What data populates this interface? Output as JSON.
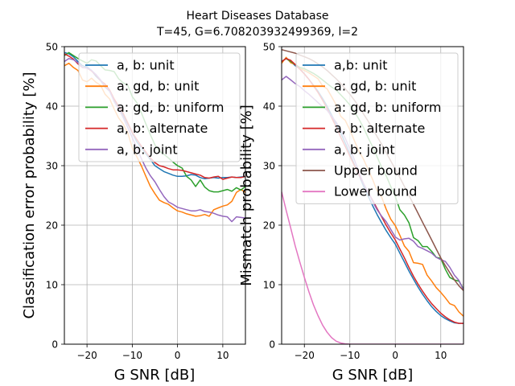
{
  "figure": {
    "title_line1": "Heart Diseases Database",
    "title_line2": "T=45, G=6.708203932499369, l=2"
  },
  "chart_data": [
    {
      "type": "line",
      "xlabel": "G SNR [dB]",
      "ylabel": "Classification error probability [%]",
      "xlim": [
        -25,
        15
      ],
      "ylim": [
        0,
        50
      ],
      "xticks": [
        -20,
        -10,
        0,
        10
      ],
      "yticks": [
        0,
        10,
        20,
        30,
        40,
        50
      ],
      "grid": true,
      "legend_position": "upper right",
      "x": [
        -25,
        -24,
        -23,
        -22,
        -21,
        -20,
        -19,
        -18,
        -17,
        -16,
        -15,
        -14,
        -13,
        -12,
        -11,
        -10,
        -9,
        -8,
        -7,
        -6,
        -5,
        -4,
        -3,
        -2,
        -1,
        0,
        1,
        2,
        3,
        4,
        5,
        6,
        7,
        8,
        9,
        10,
        11,
        12,
        13,
        14,
        15
      ],
      "series": [
        {
          "name": "a, b: unit",
          "color": "#1f77b4",
          "values": [
            49,
            48.8,
            48.3,
            47.5,
            46.8,
            46.6,
            46,
            45,
            44.3,
            43.2,
            42.5,
            41,
            40,
            38.5,
            37,
            35.5,
            34,
            33,
            32,
            31,
            30,
            29.5,
            29,
            28.7,
            28.4,
            28.2,
            28.2,
            28.3,
            28.5,
            28.4,
            28,
            27.8,
            27.9,
            28,
            27.9,
            28,
            28,
            28.1,
            28,
            28.1,
            28.2
          ]
        },
        {
          "name": "a: gd, b: unit",
          "color": "#ff7f0e",
          "values": [
            46.8,
            47.2,
            46.5,
            46,
            44.4,
            44.1,
            44.7,
            44,
            43.5,
            42,
            41.2,
            39.5,
            38,
            37,
            35.5,
            33,
            31.5,
            30,
            28.2,
            26.5,
            25.3,
            24.2,
            23.8,
            23.5,
            22.9,
            22.4,
            22.2,
            21.9,
            21.7,
            21.5,
            21.6,
            21.8,
            21.5,
            22.6,
            22.9,
            23.2,
            23.4,
            24,
            25.5,
            26,
            25.5
          ]
        },
        {
          "name": "a: gd, b: uniform",
          "color": "#2ca02c",
          "values": [
            48.5,
            49,
            48.5,
            48,
            47.6,
            47.2,
            47.8,
            47.6,
            46.8,
            46.1,
            46,
            45.8,
            44.6,
            43.9,
            43.5,
            41.6,
            40.6,
            38.9,
            37,
            35.2,
            33.5,
            32.4,
            31.9,
            31.3,
            30.6,
            30,
            29.6,
            28.2,
            27.6,
            26.5,
            27.6,
            26.4,
            25.8,
            25.6,
            25.6,
            25.8,
            26,
            25.7,
            26.3,
            25.9,
            26.5
          ]
        },
        {
          "name": "a, b: alternate",
          "color": "#d62728",
          "values": [
            48.8,
            48.4,
            47.9,
            47.1,
            46.5,
            46.4,
            45.9,
            45.2,
            44.3,
            43.7,
            42.7,
            41.2,
            40,
            38.8,
            37.2,
            35.6,
            34.4,
            33.3,
            32.3,
            31.3,
            30.5,
            30,
            29.8,
            29.5,
            29.3,
            29.3,
            29.2,
            29,
            28.8,
            28.6,
            28.4,
            28,
            27.9,
            28.1,
            28.2,
            27.7,
            27.9,
            28.1,
            28,
            28,
            28.2
          ]
        },
        {
          "name": "a, b: joint",
          "color": "#9467bd",
          "values": [
            47.5,
            48,
            47.8,
            47.3,
            46.5,
            46.4,
            46,
            45.3,
            44.4,
            43.3,
            42.5,
            40.8,
            39.5,
            38.1,
            36.4,
            34.7,
            33,
            31.2,
            29.6,
            28.3,
            27.3,
            26,
            24.8,
            23.9,
            23.5,
            23,
            22.8,
            22.6,
            22.4,
            22.4,
            22.6,
            22.3,
            22.2,
            22,
            21.7,
            21.5,
            21.4,
            20.6,
            21.4,
            21.3,
            21.2
          ]
        }
      ]
    },
    {
      "type": "line",
      "xlabel": "G SNR [dB]",
      "ylabel": "Mismatch probability [%]",
      "xlim": [
        -25,
        15
      ],
      "ylim": [
        0,
        50
      ],
      "xticks": [
        -20,
        -10,
        0,
        10
      ],
      "yticks": [
        0,
        10,
        20,
        30,
        40,
        50
      ],
      "grid": true,
      "legend_position": "upper right",
      "x": [
        -25,
        -24,
        -23,
        -22,
        -21,
        -20,
        -19,
        -18,
        -17,
        -16,
        -15,
        -14,
        -13,
        -12,
        -11,
        -10,
        -9,
        -8,
        -7,
        -6,
        -5,
        -4,
        -3,
        -2,
        -1,
        0,
        1,
        2,
        3,
        4,
        5,
        6,
        7,
        8,
        9,
        10,
        11,
        12,
        13,
        14,
        15
      ],
      "series": [
        {
          "name": "a,b: unit",
          "color": "#1f77b4",
          "values": [
            47.5,
            48,
            47.5,
            46.8,
            46.3,
            45.4,
            44.5,
            43.5,
            42.5,
            41.3,
            40,
            38.5,
            37,
            35.5,
            33.8,
            32,
            30.2,
            28.4,
            26.6,
            24.9,
            23.3,
            21.8,
            20.4,
            19.1,
            17.9,
            16.8,
            15.3,
            13.8,
            12.3,
            10.9,
            9.6,
            8.4,
            7.3,
            6.3,
            5.5,
            4.8,
            4.3,
            3.9,
            3.6,
            3.5,
            3.5
          ]
        },
        {
          "name": "a: gd, b: unit",
          "color": "#ff7f0e",
          "values": [
            47.2,
            48.2,
            47.3,
            47,
            46.3,
            46,
            45.6,
            45.1,
            44.6,
            43.4,
            42.9,
            41.6,
            40.2,
            38.3,
            37.6,
            36,
            34.2,
            32.4,
            31.1,
            29.4,
            27.7,
            25.8,
            24.7,
            22.7,
            21,
            19.9,
            18.3,
            16.5,
            15.6,
            13.7,
            13.6,
            13.4,
            11.6,
            10.6,
            9.5,
            8.7,
            7.8,
            6.8,
            6.5,
            5.4,
            4.7
          ]
        },
        {
          "name": "a: gd, b: uniform",
          "color": "#2ca02c",
          "values": [
            47.5,
            48,
            47.5,
            47,
            46.5,
            46.3,
            45.9,
            45.5,
            45,
            44.4,
            43.8,
            43.2,
            42.7,
            41.9,
            41.1,
            40.2,
            39.1,
            37.8,
            36.4,
            34.7,
            33.2,
            31.5,
            29.7,
            28.3,
            26.5,
            24.8,
            22.6,
            21.7,
            20.4,
            17.9,
            17.4,
            16.4,
            16.4,
            15.6,
            14.6,
            14.4,
            12.6,
            11.2,
            10.8,
            10.6,
            9.3
          ]
        },
        {
          "name": "a, b: alternate",
          "color": "#d62728",
          "values": [
            47.5,
            48,
            47.7,
            47,
            46.2,
            45.4,
            44.5,
            43.4,
            42.3,
            41,
            39.6,
            38.1,
            36.5,
            34.8,
            33.2,
            31.6,
            30,
            28.5,
            27,
            25.5,
            24.2,
            22.8,
            21.4,
            20,
            18.7,
            17.5,
            16,
            14.5,
            12.9,
            11.4,
            10.1,
            8.9,
            7.8,
            6.8,
            6,
            5.2,
            4.6,
            4.1,
            3.7,
            3.5,
            3.5
          ]
        },
        {
          "name": "a, b: joint",
          "color": "#9467bd",
          "values": [
            44.4,
            45,
            44.4,
            43.8,
            43.3,
            42.6,
            42,
            41.3,
            40.6,
            39.9,
            39.3,
            38.3,
            37.3,
            36.1,
            34.6,
            32.8,
            31,
            28.9,
            27,
            25.6,
            24,
            22.6,
            21.5,
            20.6,
            19.3,
            18,
            17.5,
            17.7,
            17.8,
            17.3,
            16.4,
            16.1,
            15.7,
            15.3,
            14.6,
            14.2,
            13.9,
            12.9,
            11.6,
            10.7,
            9.1
          ]
        },
        {
          "name": "Upper bound",
          "color": "#8c564b",
          "values": [
            49.5,
            49.3,
            49.1,
            48.9,
            48.6,
            48.3,
            48,
            47.6,
            47.1,
            46.6,
            46,
            45.3,
            44.6,
            43.8,
            42.9,
            42,
            41,
            39.9,
            38.7,
            37.5,
            36.2,
            34.9,
            33.6,
            32.2,
            30.8,
            29.4,
            28,
            26.5,
            25,
            23.5,
            22,
            20.5,
            19,
            17.5,
            16,
            14.5,
            13.2,
            12,
            10.8,
            9.8,
            9
          ]
        },
        {
          "name": "Lower bound",
          "color": "#e377c2",
          "values": [
            25.6,
            22.5,
            19.5,
            16.5,
            13.8,
            11.2,
            8.8,
            6.6,
            4.8,
            3.2,
            2,
            1.1,
            0.5,
            0.2,
            0.05,
            0,
            0,
            0,
            0,
            0,
            0,
            0,
            0,
            0,
            0,
            0,
            0,
            0,
            0,
            0,
            0,
            0,
            0,
            0,
            0,
            0,
            0,
            0,
            0,
            0,
            0
          ]
        }
      ]
    }
  ]
}
